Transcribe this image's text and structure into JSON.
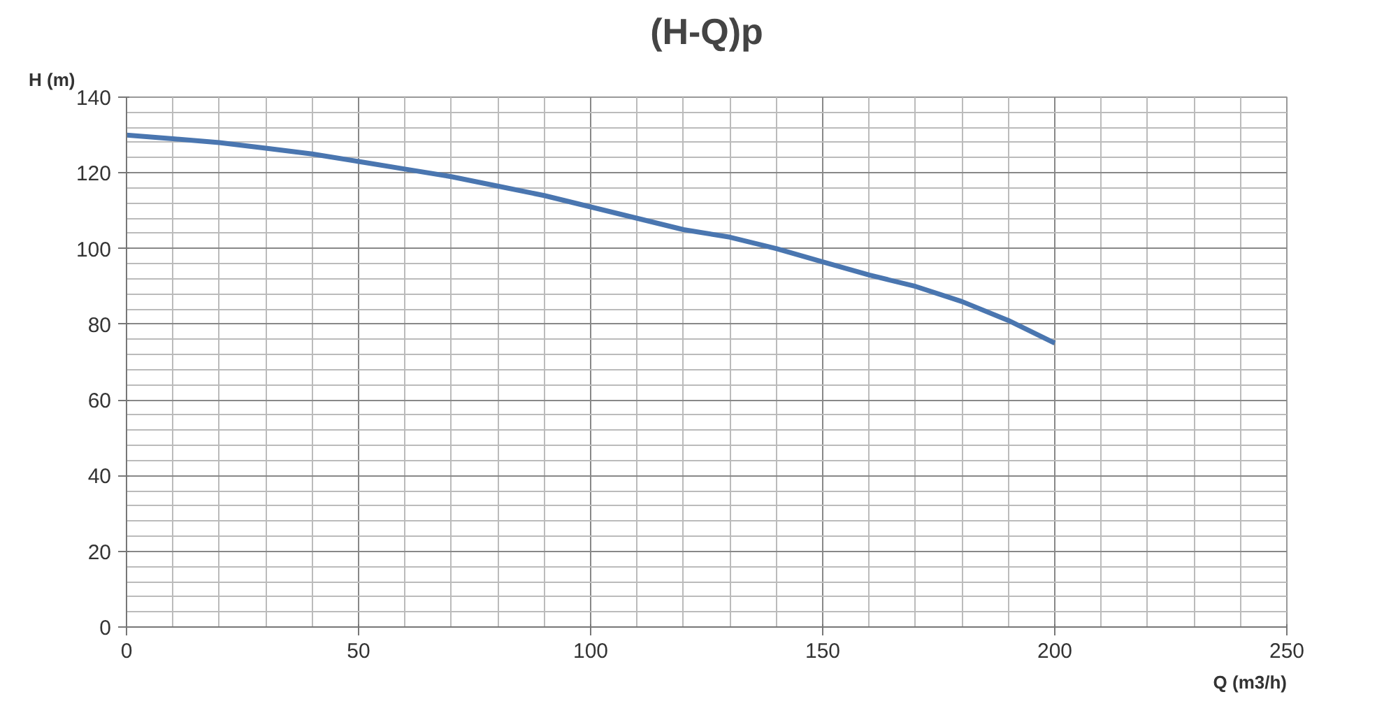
{
  "chart_data": {
    "type": "line",
    "title": "(H-Q)p",
    "xlabel": "Q (m3/h)",
    "ylabel": "H (m)",
    "x": [
      0,
      10,
      20,
      30,
      40,
      50,
      60,
      70,
      80,
      90,
      100,
      110,
      120,
      130,
      140,
      150,
      160,
      170,
      180,
      190,
      200
    ],
    "series": [
      {
        "color": "#4a76b0",
        "values": [
          130,
          129,
          128,
          126.5,
          125,
          123,
          121,
          119,
          116.5,
          114,
          111,
          108,
          105,
          103,
          100,
          96.5,
          93,
          90,
          86,
          81,
          75
        ]
      }
    ],
    "xlim": [
      0,
      250
    ],
    "ylim": [
      0,
      140
    ],
    "xticks": [
      0,
      50,
      100,
      150,
      200,
      250
    ],
    "yticks": [
      0,
      20,
      40,
      60,
      80,
      100,
      120,
      140
    ],
    "grid": true,
    "marker": "none",
    "line_style": "solid"
  }
}
